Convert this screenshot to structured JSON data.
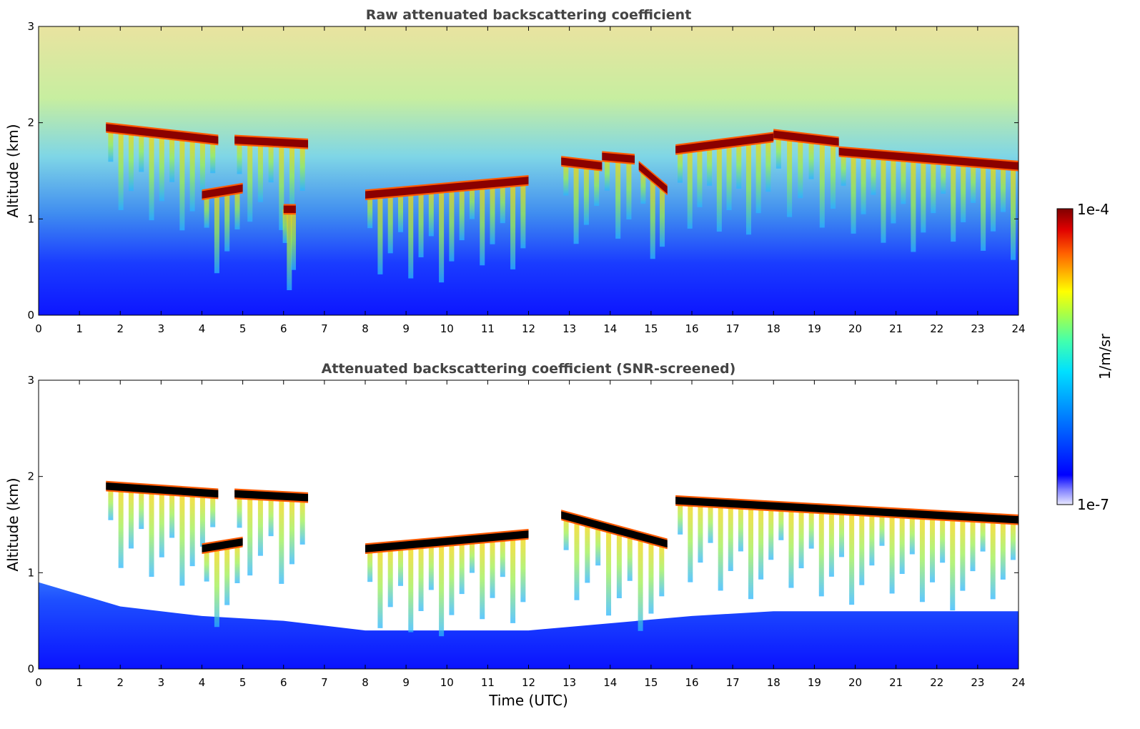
{
  "chart_data": [
    {
      "type": "heatmap",
      "title": "Raw attenuated backscattering coefficient",
      "xlabel": "",
      "ylabel": "Altitude (km)",
      "xlim": [
        0,
        24
      ],
      "ylim": [
        0,
        3
      ],
      "xticks": [
        "0",
        "1",
        "2",
        "3",
        "4",
        "5",
        "6",
        "7",
        "8",
        "9",
        "10",
        "11",
        "12",
        "13",
        "14",
        "15",
        "16",
        "17",
        "18",
        "19",
        "20",
        "21",
        "22",
        "23",
        "24"
      ],
      "yticks": [
        "0",
        "1",
        "2",
        "3"
      ],
      "screened": false,
      "cloud_layers": [
        {
          "x": [
            1.65,
            4.4
          ],
          "alt": [
            1.95,
            1.82
          ]
        },
        {
          "x": [
            4.8,
            6.6
          ],
          "alt": [
            1.82,
            1.78
          ]
        },
        {
          "x": [
            4.0,
            5.0
          ],
          "alt": [
            1.25,
            1.32
          ]
        },
        {
          "x": [
            6.0,
            6.3
          ],
          "alt": [
            1.1,
            1.1
          ]
        },
        {
          "x": [
            8.0,
            12.0
          ],
          "alt": [
            1.25,
            1.4
          ]
        },
        {
          "x": [
            12.8,
            13.8
          ],
          "alt": [
            1.6,
            1.55
          ]
        },
        {
          "x": [
            13.8,
            14.6
          ],
          "alt": [
            1.65,
            1.62
          ]
        },
        {
          "x": [
            14.7,
            15.4
          ],
          "alt": [
            1.55,
            1.3
          ]
        },
        {
          "x": [
            15.6,
            18.0
          ],
          "alt": [
            1.72,
            1.85
          ]
        },
        {
          "x": [
            18.0,
            19.6
          ],
          "alt": [
            1.88,
            1.8
          ]
        },
        {
          "x": [
            19.6,
            24.0
          ],
          "alt": [
            1.7,
            1.55
          ]
        }
      ]
    },
    {
      "type": "heatmap",
      "title": "Attenuated backscattering coefficient (SNR-screened)",
      "xlabel": "Time (UTC)",
      "ylabel": "Altitude (km)",
      "xlim": [
        0,
        24
      ],
      "ylim": [
        0,
        3
      ],
      "xticks": [
        "0",
        "1",
        "2",
        "3",
        "4",
        "5",
        "6",
        "7",
        "8",
        "9",
        "10",
        "11",
        "12",
        "13",
        "14",
        "15",
        "16",
        "17",
        "18",
        "19",
        "20",
        "21",
        "22",
        "23",
        "24"
      ],
      "yticks": [
        "0",
        "1",
        "2",
        "3"
      ],
      "screened": true,
      "cloud_layers": [
        {
          "x": [
            1.65,
            4.4
          ],
          "alt": [
            1.9,
            1.82
          ]
        },
        {
          "x": [
            4.8,
            6.6
          ],
          "alt": [
            1.82,
            1.78
          ]
        },
        {
          "x": [
            4.0,
            5.0
          ],
          "alt": [
            1.25,
            1.32
          ]
        },
        {
          "x": [
            8.0,
            12.0
          ],
          "alt": [
            1.25,
            1.4
          ]
        },
        {
          "x": [
            12.8,
            15.4
          ],
          "alt": [
            1.6,
            1.3
          ]
        },
        {
          "x": [
            15.6,
            24.0
          ],
          "alt": [
            1.75,
            1.55
          ]
        }
      ]
    }
  ],
  "colorbar": {
    "label": "1/m/sr",
    "max_label": "1e-4",
    "min_label": "1e-7",
    "scale": "log",
    "range": [
      1e-07,
      0.0001
    ],
    "colormap": "jet"
  },
  "colors": {
    "title": "#444444",
    "cloud_core_raw": "#8b0000",
    "cloud_core_screened": "#000000",
    "background_low": "#0a1aff"
  }
}
